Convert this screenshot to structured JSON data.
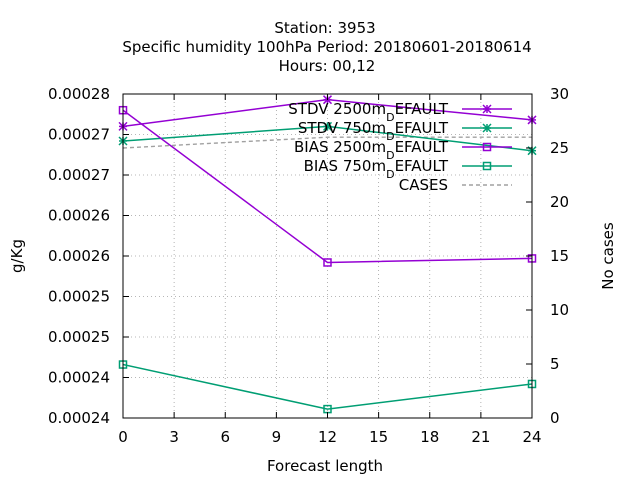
{
  "title": {
    "line1": "Station:     3953",
    "line2": "Specific humidity 100hPa   Period: 20180601-20180614",
    "line3": "Hours:  00,12"
  },
  "chart_data": {
    "type": "line",
    "xlabel": "Forecast length",
    "ylabel": "g/Kg",
    "y2label": "No cases",
    "xlim": [
      0,
      24
    ],
    "ylim": [
      0.00024,
      0.00028
    ],
    "y2lim": [
      0,
      30
    ],
    "grid": true,
    "legend_position": "top-right",
    "x": [
      0,
      12,
      24
    ],
    "x_ticks": [
      0,
      3,
      6,
      9,
      12,
      15,
      18,
      21,
      24
    ],
    "x_tick_labels": [
      "0",
      "3",
      "6",
      "9",
      "12",
      "15",
      "18",
      "21",
      "24"
    ],
    "y_ticks": [
      0.00024,
      0.000245,
      0.00025,
      0.000255,
      0.00026,
      0.000265,
      0.00027,
      0.000275,
      0.00028
    ],
    "y_tick_labels": [
      "0.00024",
      "0.00024",
      "0.00025",
      "0.00025",
      "0.00026",
      "0.00026",
      "0.00027",
      "0.00027",
      "0.00028"
    ],
    "y2_ticks": [
      0,
      5,
      10,
      15,
      20,
      25,
      30
    ],
    "y2_tick_labels": [
      "0",
      "5",
      "10",
      "15",
      "20",
      "25",
      "30"
    ],
    "series": [
      {
        "name": "STDV 2500m_DEFAULT",
        "legend": "STDV 2500m",
        "sub": "D",
        "tail": "EFAULT",
        "color": "#9400d3",
        "marker": "star",
        "dash": false,
        "axis": "y",
        "values": [
          0.000276,
          0.0002793,
          0.0002768
        ]
      },
      {
        "name": "STDV 750m_DEFAULT",
        "legend": "STDV 750m",
        "sub": "D",
        "tail": "EFAULT",
        "color": "#009e73",
        "marker": "star",
        "dash": false,
        "axis": "y",
        "values": [
          0.0002742,
          0.000276,
          0.000273
        ]
      },
      {
        "name": "BIAS 2500m_DEFAULT",
        "legend": "BIAS 2500m",
        "sub": "D",
        "tail": "EFAULT",
        "color": "#9400d3",
        "marker": "square",
        "dash": false,
        "axis": "y",
        "values": [
          0.000278,
          0.0002592,
          0.0002597
        ]
      },
      {
        "name": "BIAS 750m_DEFAULT",
        "legend": "BIAS 750m",
        "sub": "D",
        "tail": "EFAULT",
        "color": "#009e73",
        "marker": "square",
        "dash": false,
        "axis": "y",
        "values": [
          0.0002466,
          0.0002411,
          0.0002442
        ]
      },
      {
        "name": "CASES",
        "legend": "CASES",
        "sub": "",
        "tail": "",
        "color": "#a0a0a0",
        "marker": "none",
        "dash": true,
        "axis": "y2",
        "values": [
          25,
          26,
          26
        ]
      }
    ]
  }
}
